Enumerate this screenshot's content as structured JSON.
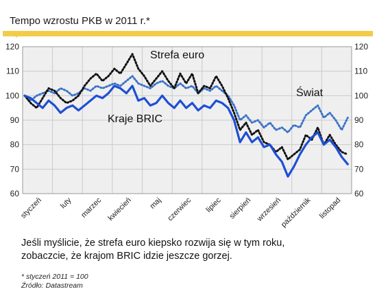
{
  "header": {
    "title": "Tempo wzrostu PKB w 2011 r.*"
  },
  "chart_data": {
    "type": "line",
    "title": "Tempo wzrostu PKB w 2011 r.*",
    "xlabel": "",
    "ylabel": "",
    "ylim": [
      60,
      120
    ],
    "yticks": [
      60,
      70,
      80,
      90,
      100,
      110,
      120
    ],
    "grid": true,
    "categories": [
      "styczeń",
      "luty",
      "marzec",
      "kwiecień",
      "maj",
      "czerwiec",
      "lipiec",
      "sierpień",
      "wrzesień",
      "październik",
      "listopad"
    ],
    "series": [
      {
        "name": "Strefa euro",
        "color": "#111111",
        "style": "dotted",
        "points": [
          [
            0.0,
            100
          ],
          [
            0.2,
            97
          ],
          [
            0.4,
            95
          ],
          [
            0.6,
            99
          ],
          [
            0.8,
            103
          ],
          [
            1.0,
            102
          ],
          [
            1.2,
            99
          ],
          [
            1.4,
            97
          ],
          [
            1.6,
            98
          ],
          [
            1.8,
            100
          ],
          [
            2.0,
            104
          ],
          [
            2.2,
            107
          ],
          [
            2.4,
            109
          ],
          [
            2.6,
            106
          ],
          [
            2.8,
            108
          ],
          [
            3.0,
            111
          ],
          [
            3.2,
            109
          ],
          [
            3.4,
            113
          ],
          [
            3.6,
            117
          ],
          [
            3.8,
            111
          ],
          [
            4.0,
            108
          ],
          [
            4.2,
            104
          ],
          [
            4.4,
            107
          ],
          [
            4.6,
            110
          ],
          [
            4.8,
            106
          ],
          [
            5.0,
            103
          ],
          [
            5.2,
            109
          ],
          [
            5.4,
            105
          ],
          [
            5.6,
            109
          ],
          [
            5.8,
            101
          ],
          [
            6.0,
            104
          ],
          [
            6.2,
            103
          ],
          [
            6.4,
            108
          ],
          [
            6.6,
            104
          ],
          [
            6.8,
            99
          ],
          [
            7.0,
            93
          ],
          [
            7.2,
            86
          ],
          [
            7.4,
            89
          ],
          [
            7.6,
            84
          ],
          [
            7.8,
            86
          ],
          [
            8.0,
            81
          ],
          [
            8.2,
            80
          ],
          [
            8.4,
            77
          ],
          [
            8.6,
            79
          ],
          [
            8.8,
            74
          ],
          [
            9.0,
            76
          ],
          [
            9.2,
            78
          ],
          [
            9.4,
            84
          ],
          [
            9.6,
            82
          ],
          [
            9.8,
            87
          ],
          [
            10.0,
            80
          ],
          [
            10.2,
            84
          ],
          [
            10.4,
            80
          ],
          [
            10.6,
            77
          ],
          [
            10.8,
            76
          ]
        ]
      },
      {
        "name": "Świat",
        "color": "#3d73c8",
        "style": "dotted",
        "points": [
          [
            0.0,
            100
          ],
          [
            0.2,
            98
          ],
          [
            0.4,
            100
          ],
          [
            0.6,
            101
          ],
          [
            0.8,
            102
          ],
          [
            1.0,
            101
          ],
          [
            1.2,
            103
          ],
          [
            1.4,
            102
          ],
          [
            1.6,
            100
          ],
          [
            1.8,
            101
          ],
          [
            2.0,
            103
          ],
          [
            2.2,
            102
          ],
          [
            2.4,
            104
          ],
          [
            2.6,
            103
          ],
          [
            2.8,
            104
          ],
          [
            3.0,
            105
          ],
          [
            3.2,
            104
          ],
          [
            3.4,
            106
          ],
          [
            3.6,
            108
          ],
          [
            3.8,
            105
          ],
          [
            4.0,
            104
          ],
          [
            4.2,
            103
          ],
          [
            4.4,
            105
          ],
          [
            4.6,
            106
          ],
          [
            4.8,
            104
          ],
          [
            5.0,
            103
          ],
          [
            5.2,
            105
          ],
          [
            5.4,
            103
          ],
          [
            5.6,
            104
          ],
          [
            5.8,
            101
          ],
          [
            6.0,
            103
          ],
          [
            6.2,
            102
          ],
          [
            6.4,
            104
          ],
          [
            6.6,
            102
          ],
          [
            6.8,
            100
          ],
          [
            7.0,
            96
          ],
          [
            7.2,
            90
          ],
          [
            7.4,
            92
          ],
          [
            7.6,
            89
          ],
          [
            7.8,
            90
          ],
          [
            8.0,
            87
          ],
          [
            8.2,
            89
          ],
          [
            8.4,
            86
          ],
          [
            8.6,
            87
          ],
          [
            8.8,
            85
          ],
          [
            9.0,
            88
          ],
          [
            9.2,
            87
          ],
          [
            9.4,
            92
          ],
          [
            9.6,
            94
          ],
          [
            9.8,
            96
          ],
          [
            10.0,
            91
          ],
          [
            10.2,
            93
          ],
          [
            10.4,
            90
          ],
          [
            10.6,
            86
          ],
          [
            10.8,
            91
          ]
        ]
      },
      {
        "name": "Kraje BRIC",
        "color": "#1d4fd6",
        "style": "solid",
        "points": [
          [
            0.0,
            100
          ],
          [
            0.2,
            99
          ],
          [
            0.4,
            97
          ],
          [
            0.6,
            95
          ],
          [
            0.8,
            98
          ],
          [
            1.0,
            96
          ],
          [
            1.2,
            93
          ],
          [
            1.4,
            95
          ],
          [
            1.6,
            96
          ],
          [
            1.8,
            94
          ],
          [
            2.0,
            96
          ],
          [
            2.2,
            98
          ],
          [
            2.4,
            100
          ],
          [
            2.6,
            99
          ],
          [
            2.8,
            101
          ],
          [
            3.0,
            104
          ],
          [
            3.2,
            103
          ],
          [
            3.4,
            101
          ],
          [
            3.6,
            104
          ],
          [
            3.8,
            98
          ],
          [
            4.0,
            99
          ],
          [
            4.2,
            96
          ],
          [
            4.4,
            97
          ],
          [
            4.6,
            100
          ],
          [
            4.8,
            97
          ],
          [
            5.0,
            95
          ],
          [
            5.2,
            98
          ],
          [
            5.4,
            95
          ],
          [
            5.6,
            97
          ],
          [
            5.8,
            94
          ],
          [
            6.0,
            96
          ],
          [
            6.2,
            95
          ],
          [
            6.4,
            98
          ],
          [
            6.6,
            97
          ],
          [
            6.8,
            95
          ],
          [
            7.0,
            90
          ],
          [
            7.2,
            81
          ],
          [
            7.4,
            85
          ],
          [
            7.6,
            81
          ],
          [
            7.8,
            83
          ],
          [
            8.0,
            79
          ],
          [
            8.2,
            80
          ],
          [
            8.4,
            76
          ],
          [
            8.6,
            73
          ],
          [
            8.8,
            67
          ],
          [
            9.0,
            71
          ],
          [
            9.2,
            76
          ],
          [
            9.4,
            80
          ],
          [
            9.6,
            83
          ],
          [
            9.8,
            85
          ],
          [
            10.0,
            80
          ],
          [
            10.2,
            82
          ],
          [
            10.4,
            79
          ],
          [
            10.6,
            75
          ],
          [
            10.8,
            72
          ]
        ]
      }
    ],
    "annotations": [
      "Strefa euro",
      "Świat",
      "Kraje BRIC"
    ]
  },
  "caption": {
    "line1": "Jeśli myślicie, że strefa euro kiepsko rozwija się w tym roku,",
    "line2": "zobaczcie, że krajom BRIC idzie jeszcze gorzej."
  },
  "notes": {
    "footnote": "* styczeń 2011 = 100",
    "source": "Źródło: Datastream"
  }
}
